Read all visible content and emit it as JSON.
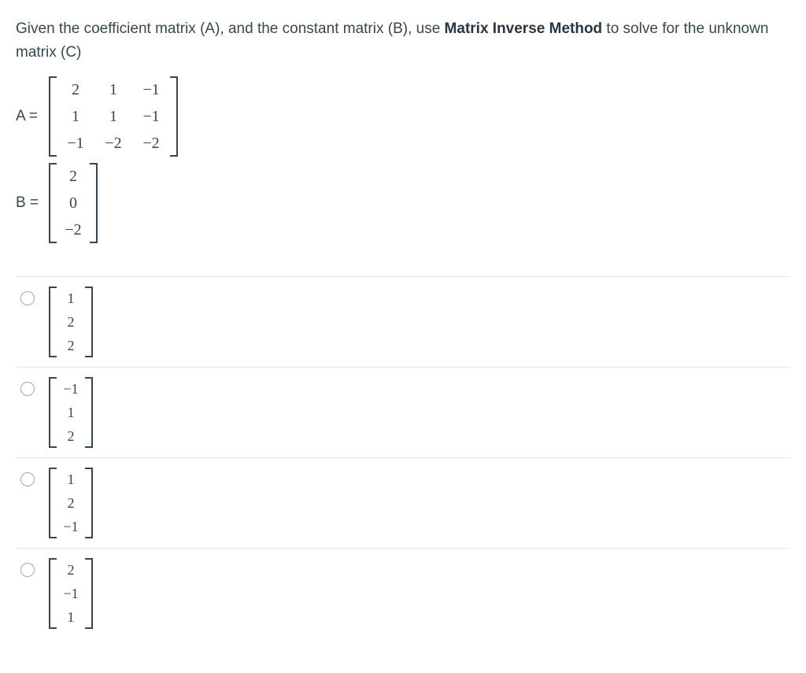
{
  "question": {
    "pre": "Given the coefficient matrix (A), and the constant matrix (B), use ",
    "bold": "Matrix Inverse Method",
    "post": " to solve for the unknown matrix (C)"
  },
  "matrices": {
    "A": {
      "label": "A =",
      "rows": 3,
      "cols": 3,
      "cells": [
        "2",
        "1",
        "−1",
        "1",
        "1",
        "−1",
        "−1",
        "−2",
        "−2"
      ],
      "fontsize": 20,
      "color": "#37474f"
    },
    "B": {
      "label": "B =",
      "rows": 3,
      "cols": 1,
      "cells": [
        "2",
        "0",
        "−2"
      ],
      "fontsize": 20,
      "color": "#37474f"
    }
  },
  "options": [
    {
      "rows": 3,
      "cols": 1,
      "cells": [
        "1",
        "2",
        "2"
      ]
    },
    {
      "rows": 3,
      "cols": 1,
      "cells": [
        "−1",
        "1",
        "2"
      ]
    },
    {
      "rows": 3,
      "cols": 1,
      "cells": [
        "1",
        "2",
        "−1"
      ]
    },
    {
      "rows": 3,
      "cols": 1,
      "cells": [
        "2",
        "−1",
        "1"
      ]
    }
  ],
  "style": {
    "text_color": "#37474f",
    "accent_color": "#2a363f",
    "border_color": "#e5e7e9",
    "radio_border": "#9aa6ae",
    "background": "#ffffff",
    "body_fontsize": 19,
    "matrix_font": "Georgia, Times New Roman, serif"
  }
}
